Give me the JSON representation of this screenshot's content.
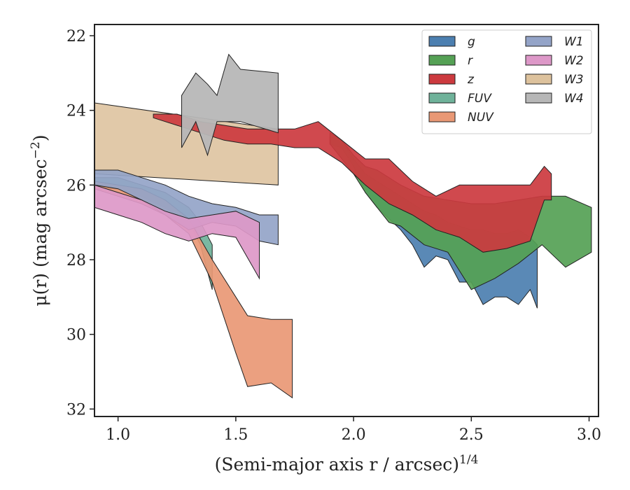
{
  "chart_data": {
    "type": "area",
    "xlabel": "(Semi-major axis r / arcsec)",
    "xlabel_sup": "1/4",
    "ylabel": "μ(r) (mag arcsec",
    "ylabel_sup": "−2",
    "ylabel_end": ")",
    "xlim": [
      0.9,
      3.04
    ],
    "ylim": [
      32.2,
      21.7
    ],
    "y_inverted": true,
    "xticks": [
      1.0,
      1.5,
      2.0,
      2.5,
      3.0
    ],
    "xtick_labels": [
      "1.0",
      "1.5",
      "2.0",
      "2.5",
      "3.0"
    ],
    "yticks": [
      22,
      24,
      26,
      28,
      30,
      32
    ],
    "ytick_labels": [
      "22",
      "24",
      "26",
      "28",
      "30",
      "32"
    ],
    "grid": false,
    "legend_position": "top-right",
    "legend_columns": 2,
    "series": [
      {
        "name": "g",
        "color": "#4c7fb0",
        "upper": [
          [
            1.9,
            24.7
          ],
          [
            1.95,
            24.8
          ],
          [
            2.0,
            25.3
          ],
          [
            2.05,
            25.7
          ],
          [
            2.1,
            25.9
          ],
          [
            2.15,
            26.1
          ],
          [
            2.2,
            26.3
          ],
          [
            2.25,
            26.5
          ],
          [
            2.3,
            26.7
          ],
          [
            2.35,
            26.8
          ],
          [
            2.4,
            27.0
          ],
          [
            2.45,
            27.1
          ],
          [
            2.5,
            27.2
          ],
          [
            2.55,
            27.2
          ],
          [
            2.6,
            27.3
          ],
          [
            2.65,
            27.3
          ],
          [
            2.7,
            27.2
          ],
          [
            2.75,
            27.4
          ],
          [
            2.78,
            27.6
          ]
        ],
        "lower": [
          [
            1.9,
            24.9
          ],
          [
            1.95,
            25.0
          ],
          [
            2.0,
            25.5
          ],
          [
            2.05,
            26.2
          ],
          [
            2.1,
            26.6
          ],
          [
            2.15,
            26.9
          ],
          [
            2.2,
            27.2
          ],
          [
            2.25,
            27.6
          ],
          [
            2.3,
            28.2
          ],
          [
            2.35,
            27.9
          ],
          [
            2.4,
            28.0
          ],
          [
            2.45,
            28.6
          ],
          [
            2.5,
            28.6
          ],
          [
            2.55,
            29.2
          ],
          [
            2.6,
            29.0
          ],
          [
            2.65,
            29.0
          ],
          [
            2.7,
            29.2
          ],
          [
            2.75,
            28.8
          ],
          [
            2.78,
            29.3
          ]
        ]
      },
      {
        "name": "r",
        "color": "#55a155",
        "upper": [
          [
            1.9,
            24.6
          ],
          [
            1.95,
            24.8
          ],
          [
            2.0,
            25.2
          ],
          [
            2.05,
            25.5
          ],
          [
            2.1,
            25.6
          ],
          [
            2.15,
            25.8
          ],
          [
            2.2,
            26.0
          ],
          [
            2.3,
            26.3
          ],
          [
            2.4,
            26.4
          ],
          [
            2.5,
            26.5
          ],
          [
            2.6,
            26.5
          ],
          [
            2.7,
            26.4
          ],
          [
            2.8,
            26.3
          ],
          [
            2.9,
            26.3
          ],
          [
            3.01,
            26.6
          ]
        ],
        "lower": [
          [
            1.9,
            24.9
          ],
          [
            1.95,
            25.3
          ],
          [
            2.0,
            25.7
          ],
          [
            2.05,
            26.2
          ],
          [
            2.1,
            26.6
          ],
          [
            2.15,
            27.0
          ],
          [
            2.2,
            27.1
          ],
          [
            2.3,
            27.6
          ],
          [
            2.4,
            27.8
          ],
          [
            2.5,
            28.8
          ],
          [
            2.6,
            28.5
          ],
          [
            2.7,
            28.1
          ],
          [
            2.8,
            27.6
          ],
          [
            2.9,
            28.2
          ],
          [
            3.01,
            27.8
          ]
        ]
      },
      {
        "name": "z",
        "color": "#cc3a3f",
        "upper": [
          [
            1.15,
            24.1
          ],
          [
            1.25,
            24.1
          ],
          [
            1.35,
            24.3
          ],
          [
            1.45,
            24.4
          ],
          [
            1.55,
            24.5
          ],
          [
            1.65,
            24.5
          ],
          [
            1.75,
            24.5
          ],
          [
            1.85,
            24.3
          ],
          [
            1.95,
            24.8
          ],
          [
            2.05,
            25.3
          ],
          [
            2.15,
            25.3
          ],
          [
            2.25,
            25.9
          ],
          [
            2.35,
            26.3
          ],
          [
            2.45,
            26.0
          ],
          [
            2.55,
            26.0
          ],
          [
            2.65,
            26.0
          ],
          [
            2.75,
            26.0
          ],
          [
            2.81,
            25.5
          ],
          [
            2.84,
            25.7
          ]
        ],
        "lower": [
          [
            1.15,
            24.2
          ],
          [
            1.25,
            24.4
          ],
          [
            1.35,
            24.6
          ],
          [
            1.45,
            24.8
          ],
          [
            1.55,
            24.9
          ],
          [
            1.65,
            24.9
          ],
          [
            1.75,
            25.0
          ],
          [
            1.85,
            25.0
          ],
          [
            1.95,
            25.4
          ],
          [
            2.05,
            26.0
          ],
          [
            2.15,
            26.5
          ],
          [
            2.25,
            26.8
          ],
          [
            2.35,
            27.2
          ],
          [
            2.45,
            27.4
          ],
          [
            2.55,
            27.8
          ],
          [
            2.65,
            27.7
          ],
          [
            2.75,
            27.5
          ],
          [
            2.81,
            26.4
          ],
          [
            2.84,
            26.4
          ]
        ]
      },
      {
        "name": "FUV",
        "color": "#6fb29a",
        "upper": [
          [
            0.9,
            25.8
          ],
          [
            1.0,
            25.8
          ],
          [
            1.1,
            26.0
          ],
          [
            1.2,
            26.2
          ],
          [
            1.3,
            26.6
          ],
          [
            1.35,
            27.0
          ],
          [
            1.4,
            27.6
          ]
        ],
        "lower": [
          [
            0.9,
            26.1
          ],
          [
            1.0,
            26.1
          ],
          [
            1.1,
            26.3
          ],
          [
            1.2,
            26.6
          ],
          [
            1.3,
            27.0
          ],
          [
            1.35,
            27.6
          ],
          [
            1.4,
            28.8
          ]
        ]
      },
      {
        "name": "NUV",
        "color": "#e99875",
        "upper": [
          [
            0.9,
            25.9
          ],
          [
            1.0,
            26.0
          ],
          [
            1.1,
            26.1
          ],
          [
            1.2,
            26.4
          ],
          [
            1.3,
            26.9
          ],
          [
            1.4,
            28.0
          ],
          [
            1.5,
            29.0
          ],
          [
            1.55,
            29.5
          ],
          [
            1.65,
            29.6
          ],
          [
            1.74,
            29.6
          ]
        ],
        "lower": [
          [
            0.9,
            26.1
          ],
          [
            1.0,
            26.3
          ],
          [
            1.1,
            26.5
          ],
          [
            1.2,
            26.8
          ],
          [
            1.3,
            27.3
          ],
          [
            1.4,
            28.6
          ],
          [
            1.5,
            30.5
          ],
          [
            1.55,
            31.4
          ],
          [
            1.65,
            31.3
          ],
          [
            1.74,
            31.7
          ]
        ]
      },
      {
        "name": "W1",
        "color": "#94a4c8",
        "upper": [
          [
            0.9,
            25.6
          ],
          [
            1.0,
            25.6
          ],
          [
            1.1,
            25.8
          ],
          [
            1.2,
            26.0
          ],
          [
            1.3,
            26.3
          ],
          [
            1.4,
            26.5
          ],
          [
            1.5,
            26.6
          ],
          [
            1.6,
            26.8
          ],
          [
            1.68,
            26.8
          ]
        ],
        "lower": [
          [
            0.9,
            26.0
          ],
          [
            1.0,
            26.1
          ],
          [
            1.1,
            26.4
          ],
          [
            1.2,
            26.8
          ],
          [
            1.3,
            27.2
          ],
          [
            1.4,
            27.0
          ],
          [
            1.5,
            27.1
          ],
          [
            1.6,
            27.5
          ],
          [
            1.68,
            27.6
          ]
        ]
      },
      {
        "name": "W2",
        "color": "#dd98c8",
        "upper": [
          [
            0.9,
            26.0
          ],
          [
            1.0,
            26.2
          ],
          [
            1.1,
            26.4
          ],
          [
            1.2,
            26.7
          ],
          [
            1.3,
            26.9
          ],
          [
            1.4,
            26.8
          ],
          [
            1.5,
            26.7
          ],
          [
            1.6,
            27.0
          ]
        ],
        "lower": [
          [
            0.9,
            26.6
          ],
          [
            1.0,
            26.8
          ],
          [
            1.1,
            27.0
          ],
          [
            1.2,
            27.3
          ],
          [
            1.3,
            27.5
          ],
          [
            1.4,
            27.3
          ],
          [
            1.5,
            27.4
          ],
          [
            1.6,
            28.5
          ]
        ]
      },
      {
        "name": "W3",
        "color": "#ddc29d",
        "upper": [
          [
            0.9,
            23.8
          ],
          [
            1.68,
            24.5
          ]
        ],
        "lower": [
          [
            0.9,
            25.7
          ],
          [
            1.68,
            26.0
          ]
        ]
      },
      {
        "name": "W4",
        "color": "#b7b7b7",
        "upper": [
          [
            1.27,
            23.6
          ],
          [
            1.33,
            23.0
          ],
          [
            1.38,
            23.3
          ],
          [
            1.42,
            23.6
          ],
          [
            1.47,
            22.5
          ],
          [
            1.52,
            22.9
          ],
          [
            1.68,
            23.0
          ]
        ],
        "lower": [
          [
            1.27,
            25.0
          ],
          [
            1.33,
            24.3
          ],
          [
            1.38,
            25.2
          ],
          [
            1.42,
            24.3
          ],
          [
            1.47,
            24.3
          ],
          [
            1.52,
            24.3
          ],
          [
            1.68,
            24.6
          ]
        ]
      }
    ]
  }
}
